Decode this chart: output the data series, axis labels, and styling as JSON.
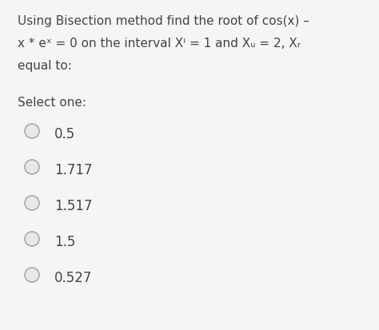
{
  "background_color": "#f5f5f5",
  "line1": "Using Bisection method find the root of cos(x) –",
  "line2": "x * eˣ = 0 on the interval Xᴵ = 1 and Xᵤ = 2, Xᵣ",
  "line3": "equal to:",
  "select_label": "Select one:",
  "options": [
    "0.5",
    "1.717",
    "1.517",
    "1.5",
    "0.527"
  ],
  "text_color": "#444444",
  "circle_edge_color": "#aaaaaa",
  "circle_fill_color": "#e8e8e8",
  "font_size_body": 11,
  "font_size_options": 12
}
